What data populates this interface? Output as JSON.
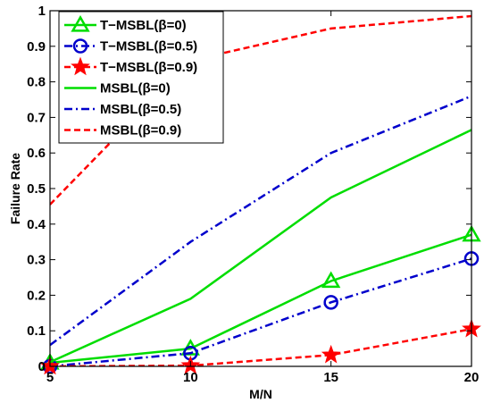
{
  "chart_data": {
    "type": "line",
    "title": "",
    "xlabel": "M/N",
    "ylabel": "Failure Rate",
    "xlim": [
      5,
      20
    ],
    "ylim": [
      0,
      1
    ],
    "x": [
      5,
      10,
      15,
      20
    ],
    "xticks": [
      5,
      10,
      15,
      20
    ],
    "xtick_labels": [
      "5",
      "10",
      "15",
      "20"
    ],
    "yticks": [
      0,
      0.1,
      0.2,
      0.3,
      0.4,
      0.5,
      0.6,
      0.7,
      0.8,
      0.9,
      1
    ],
    "ytick_labels": [
      "0",
      "0.1",
      "0.2",
      "0.3",
      "0.4",
      "0.5",
      "0.6",
      "0.7",
      "0.8",
      "0.9",
      "1"
    ],
    "grid": false,
    "legend_position": "top-left",
    "series": [
      {
        "name": "T−MSBL(β=0)",
        "values": [
          0.01,
          0.05,
          0.24,
          0.37
        ],
        "color": "#00dd00",
        "dash": "solid",
        "marker": "triangle"
      },
      {
        "name": "T−MSBL(β=0.5)",
        "values": [
          0.0,
          0.037,
          0.18,
          0.303
        ],
        "color": "#0000cc",
        "dash": "dashdot",
        "marker": "circle"
      },
      {
        "name": "T−MSBL(β=0.9)",
        "values": [
          0.0,
          0.002,
          0.032,
          0.105
        ],
        "color": "#ff0000",
        "dash": "dashed",
        "marker": "star"
      },
      {
        "name": "MSBL(β=0)",
        "values": [
          0.012,
          0.19,
          0.475,
          0.665
        ],
        "color": "#00dd00",
        "dash": "solid",
        "marker": "none"
      },
      {
        "name": "MSBL(β=0.5)",
        "values": [
          0.06,
          0.35,
          0.6,
          0.76
        ],
        "color": "#0000cc",
        "dash": "dashdot",
        "marker": "none"
      },
      {
        "name": "MSBL(β=0.9)",
        "values": [
          0.455,
          0.86,
          0.95,
          0.985
        ],
        "color": "#ff0000",
        "dash": "dashed",
        "marker": "none"
      }
    ]
  }
}
